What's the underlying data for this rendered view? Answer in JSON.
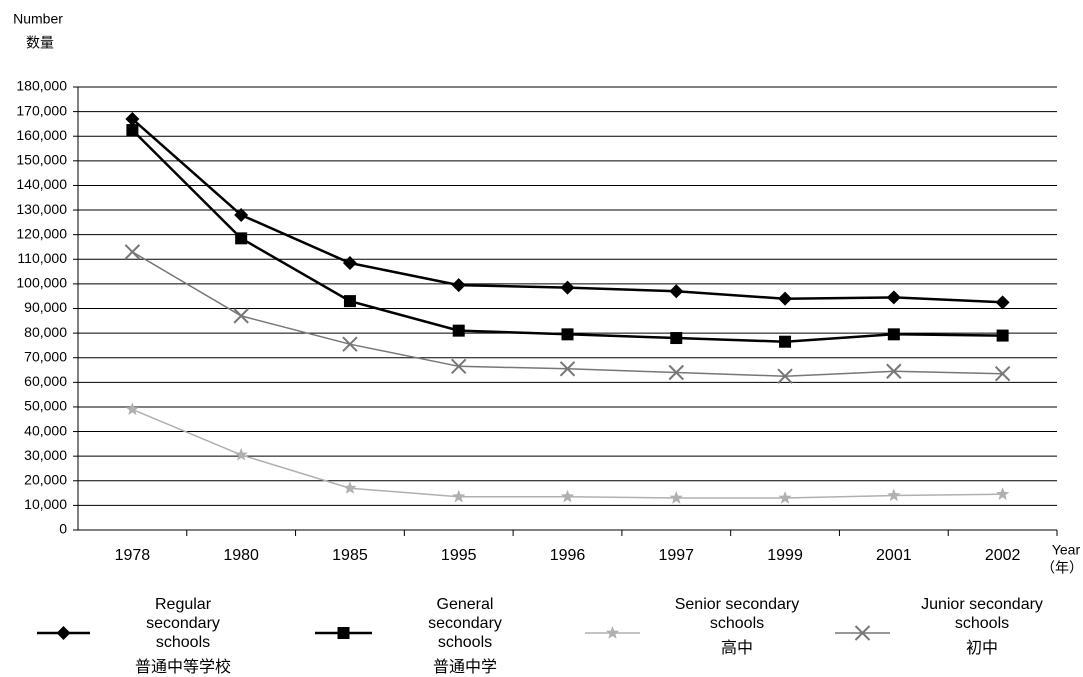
{
  "chart_data": {
    "type": "line",
    "y_label": "Number",
    "y_label_zh": "数量",
    "x_label": "Year",
    "x_label_zh": "（年）",
    "categories": [
      "1978",
      "1980",
      "1985",
      "1995",
      "1996",
      "1997",
      "1999",
      "2001",
      "2002"
    ],
    "series": [
      {
        "name": "Regular secondary schools",
        "name_zh": "普通中等学校",
        "color": "#000000",
        "marker": "diamond",
        "values": [
          167000,
          128000,
          108500,
          99500,
          98500,
          97000,
          94000,
          94500,
          92500
        ]
      },
      {
        "name": "General secondary schools",
        "name_zh": "普通中学",
        "color": "#000000",
        "marker": "square",
        "values": [
          162500,
          118500,
          93000,
          81000,
          79500,
          78000,
          76500,
          79500,
          79000
        ]
      },
      {
        "name": "Senior secondary schools",
        "name_zh": "高中",
        "color": "#b0b0b0",
        "marker": "star",
        "values": [
          49000,
          30500,
          17000,
          13500,
          13500,
          13000,
          13000,
          14000,
          14500
        ]
      },
      {
        "name": "Junior secondary schools",
        "name_zh": "初中",
        "color": "#777777",
        "marker": "x",
        "values": [
          113000,
          87000,
          75500,
          66500,
          65500,
          64000,
          62500,
          64500,
          63500
        ]
      }
    ],
    "ylim": [
      0,
      180000
    ],
    "yticks": [
      0,
      {
        "value": 10000,
        "label": "10,000"
      },
      {
        "value": 20000,
        "label": "20,000"
      },
      {
        "value": 30000,
        "label": "30,000"
      },
      {
        "value": 40000,
        "label": "40,000"
      },
      {
        "value": 50000,
        "label": "50,000"
      },
      {
        "value": 60000,
        "label": "60,000"
      },
      {
        "value": 70000,
        "label": "70,000"
      },
      {
        "value": 80000,
        "label": "80,000"
      },
      {
        "value": 90000,
        "label": "90,000"
      },
      {
        "value": 100000,
        "label": "100,000"
      },
      {
        "value": 110000,
        "label": "110,000"
      },
      {
        "value": 120000,
        "label": "120,000"
      },
      {
        "value": 130000,
        "label": "130,000"
      },
      {
        "value": 140000,
        "label": "140,000"
      },
      {
        "value": 150000,
        "label": "150,000"
      },
      {
        "value": 160000,
        "label": "160,000"
      },
      {
        "value": 170000,
        "label": "170,000"
      },
      {
        "value": 180000,
        "label": "180,000"
      }
    ],
    "grid": true
  }
}
